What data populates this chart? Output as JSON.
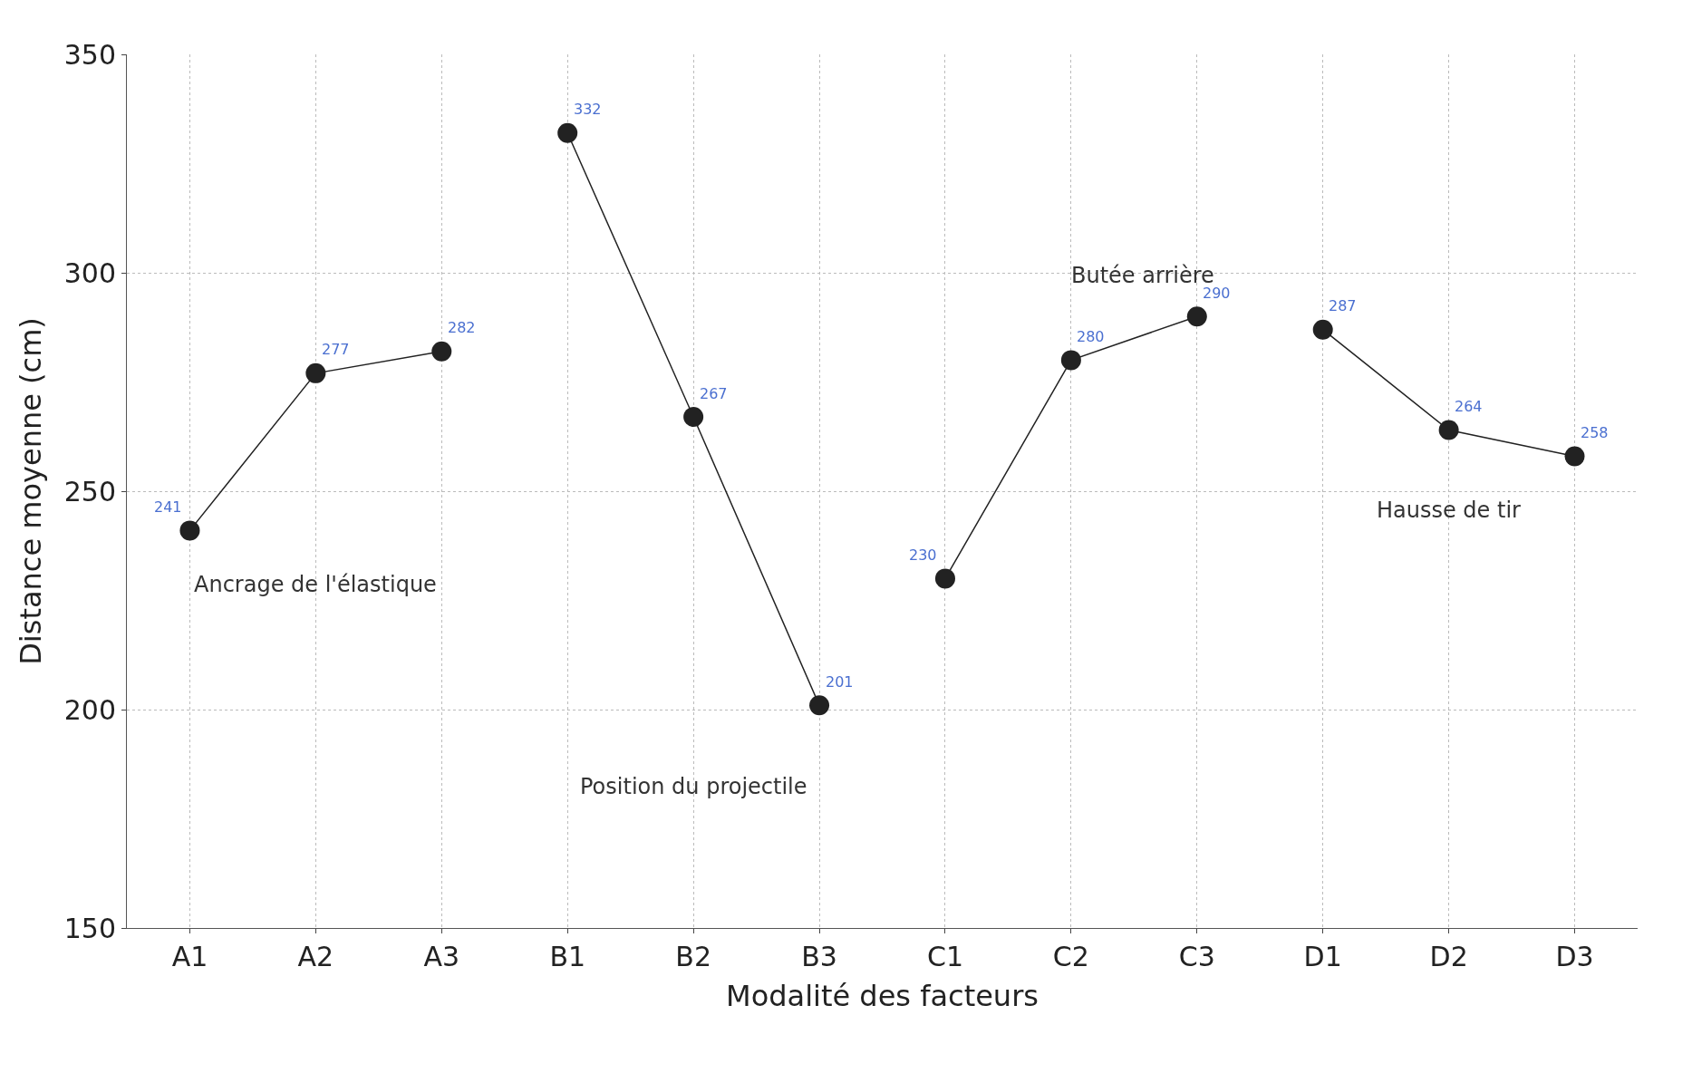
{
  "chart_data": {
    "type": "line",
    "xlabel": "Modalité des facteurs",
    "ylabel": "Distance moyenne (cm)",
    "categories": [
      "A1",
      "A2",
      "A3",
      "B1",
      "B2",
      "B3",
      "C1",
      "C2",
      "C3",
      "D1",
      "D2",
      "D3"
    ],
    "series": [
      {
        "name": "Ancrage de l'élastique",
        "color": "#222222",
        "values": [
          241,
          277,
          282,
          null,
          null,
          null,
          null,
          null,
          null,
          null,
          null,
          null
        ],
        "value_labels": [
          "241",
          "277",
          "282",
          null,
          null,
          null,
          null,
          null,
          null,
          null,
          null,
          null
        ]
      },
      {
        "name": "Position du projectile",
        "color": "#222222",
        "values": [
          null,
          null,
          null,
          332,
          267,
          201,
          null,
          null,
          null,
          null,
          null,
          null
        ],
        "value_labels": [
          null,
          null,
          null,
          "332",
          "267",
          "201",
          null,
          null,
          null,
          null,
          null,
          null
        ]
      },
      {
        "name": "Butée arrière",
        "color": "#222222",
        "values": [
          null,
          null,
          null,
          null,
          null,
          null,
          230,
          280,
          290,
          null,
          null,
          null
        ],
        "value_labels": [
          null,
          null,
          null,
          null,
          null,
          null,
          "230",
          "280",
          "290",
          null,
          null,
          null
        ]
      },
      {
        "name": "Hausse de tir",
        "color": "#222222",
        "values": [
          null,
          null,
          null,
          null,
          null,
          null,
          null,
          null,
          null,
          287,
          264,
          258
        ],
        "value_labels": [
          null,
          null,
          null,
          null,
          null,
          null,
          null,
          null,
          null,
          "287",
          "264",
          "258"
        ]
      }
    ],
    "ylim": [
      150,
      350
    ],
    "yticks": [
      150,
      200,
      250,
      300,
      350
    ],
    "grid": true,
    "legend": false,
    "marker": "circle",
    "line_style": "solid"
  }
}
